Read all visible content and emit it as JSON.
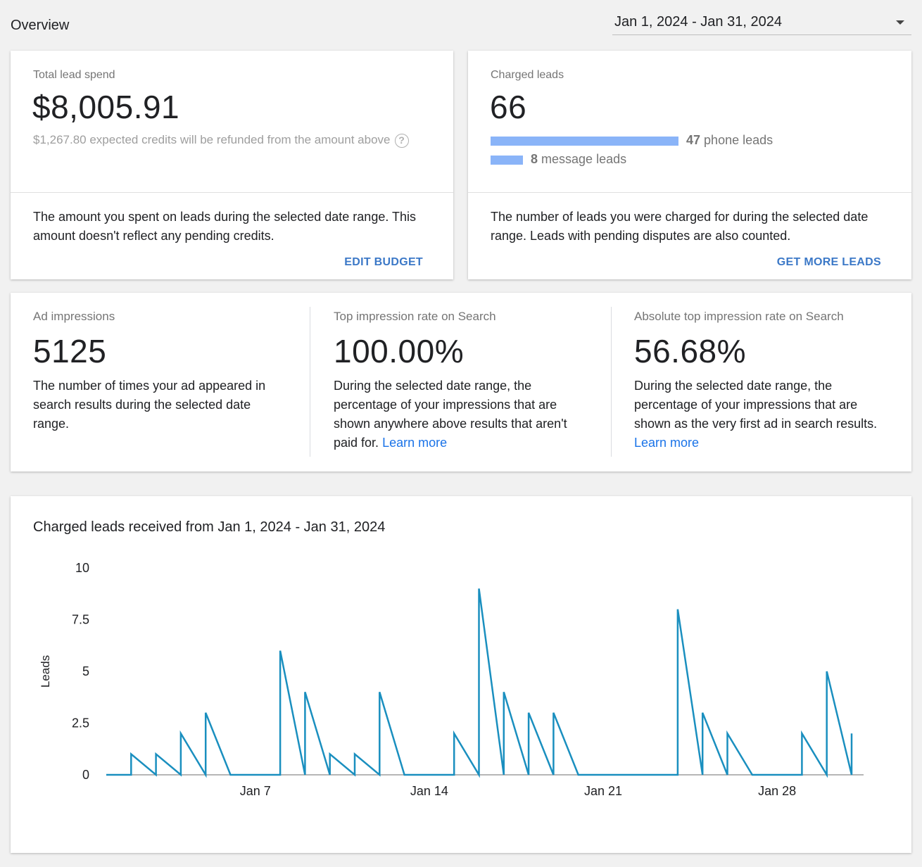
{
  "header": {
    "title": "Overview",
    "date_range": "Jan 1, 2024 - Jan 31, 2024"
  },
  "lead_spend": {
    "label": "Total lead spend",
    "value": "$8,005.91",
    "note": "$1,267.80 expected credits will be refunded from the amount above",
    "description": "The amount you spent on leads during the selected date range. This amount doesn't reflect any pending credits.",
    "action": "EDIT BUDGET"
  },
  "charged_leads": {
    "label": "Charged leads",
    "value": "66",
    "phone_count": "47",
    "phone_text": "phone leads",
    "message_count": "8",
    "message_text": "message leads",
    "description": "The number of leads you were charged for during the selected date range. Leads with pending disputes are also counted.",
    "action": "GET MORE LEADS"
  },
  "impressions": {
    "label": "Ad impressions",
    "value": "5125",
    "description": "The number of times your ad appeared in search results during the selected date range."
  },
  "top_rate": {
    "label": "Top impression rate on Search",
    "value": "100.00%",
    "description": "During the selected date range, the percentage of your impressions that are shown anywhere above results that aren't paid for.",
    "link": "Learn more"
  },
  "abs_top_rate": {
    "label": "Absolute top impression rate on Search",
    "value": "56.68%",
    "description": "During the selected date range, the percentage of your impressions that are shown as the very first ad in search results.",
    "link": "Learn more"
  },
  "colors": {
    "bar": "#8ab4f8",
    "line": "#1a8fbf",
    "action": "#3b78c7"
  },
  "chart_data": {
    "type": "line",
    "title": "Charged leads received from Jan 1, 2024 - Jan 31, 2024",
    "ylabel": "Leads",
    "xlabel": "",
    "ylim": [
      0,
      10
    ],
    "yticks": [
      "0",
      "2.5",
      "5",
      "7.5",
      "10"
    ],
    "xticks": [
      "Jan 7",
      "Jan 14",
      "Jan 21",
      "Jan 28"
    ],
    "series": [
      {
        "points": [
          [
            "Jan 1",
            0
          ],
          [
            "Jan 2",
            0
          ],
          [
            "Jan 2",
            1
          ],
          [
            "Jan 3",
            0
          ],
          [
            "Jan 3",
            1
          ],
          [
            "Jan 4",
            0
          ],
          [
            "Jan 4",
            2
          ],
          [
            "Jan 5",
            0
          ],
          [
            "Jan 5",
            3
          ],
          [
            "Jan 6",
            0
          ],
          [
            "Jan 8",
            0
          ],
          [
            "Jan 8",
            6
          ],
          [
            "Jan 9",
            0
          ],
          [
            "Jan 9",
            4
          ],
          [
            "Jan 10",
            0
          ],
          [
            "Jan 10",
            1
          ],
          [
            "Jan 11",
            0
          ],
          [
            "Jan 11",
            1
          ],
          [
            "Jan 12",
            0
          ],
          [
            "Jan 12",
            4
          ],
          [
            "Jan 13",
            0
          ],
          [
            "Jan 15",
            0
          ],
          [
            "Jan 15",
            2
          ],
          [
            "Jan 16",
            0
          ],
          [
            "Jan 16",
            9
          ],
          [
            "Jan 17",
            0
          ],
          [
            "Jan 17",
            4
          ],
          [
            "Jan 18",
            0
          ],
          [
            "Jan 18",
            3
          ],
          [
            "Jan 19",
            0
          ],
          [
            "Jan 19",
            3
          ],
          [
            "Jan 20",
            0
          ],
          [
            "Jan 24",
            0
          ],
          [
            "Jan 24",
            8
          ],
          [
            "Jan 25",
            0
          ],
          [
            "Jan 25",
            3
          ],
          [
            "Jan 26",
            0
          ],
          [
            "Jan 26",
            2
          ],
          [
            "Jan 27",
            0
          ],
          [
            "Jan 29",
            0
          ],
          [
            "Jan 29",
            2
          ],
          [
            "Jan 30",
            0
          ],
          [
            "Jan 30",
            5
          ],
          [
            "Jan 31",
            0
          ],
          [
            "Jan 31",
            2
          ]
        ]
      }
    ]
  }
}
